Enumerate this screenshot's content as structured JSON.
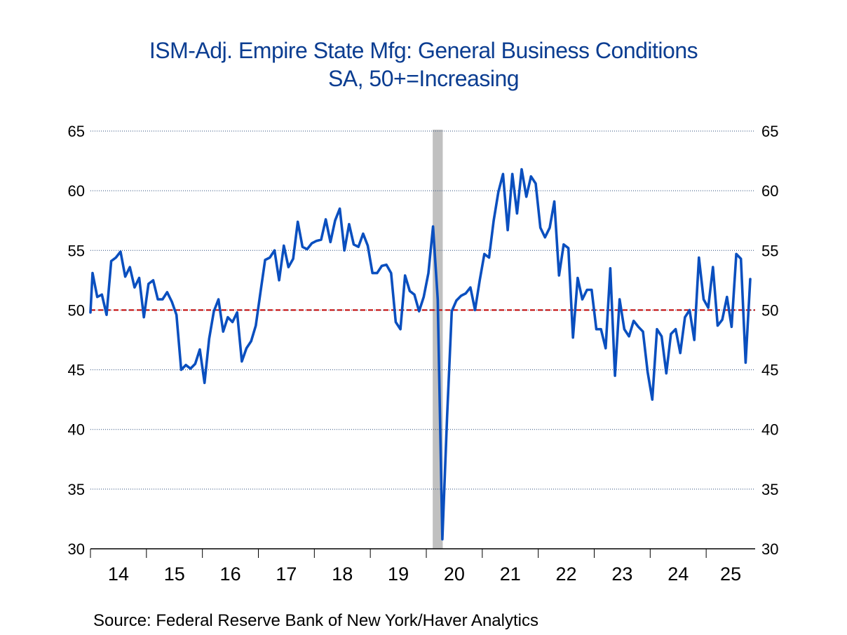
{
  "chart_data": {
    "type": "line",
    "title": "ISM-Adj. Empire State Mfg: General Business Conditions",
    "subtitle": "SA, 50+=Increasing",
    "source": "Source:  Federal Reserve Bank of New York/Haver Analytics",
    "xlabel": "",
    "ylabel": "",
    "ylim": [
      30,
      65
    ],
    "yticks": [
      30,
      35,
      40,
      45,
      50,
      55,
      60,
      65
    ],
    "ytick_labels": [
      "30",
      "35",
      "40",
      "45",
      "50",
      "55",
      "60",
      "65"
    ],
    "right_axis_mirrors_left": true,
    "xtick_labels": [
      "14",
      "15",
      "16",
      "17",
      "18",
      "19",
      "20",
      "21",
      "22",
      "23",
      "24",
      "25"
    ],
    "x_start": "2014-01",
    "x_frequency": "monthly",
    "grid": "horizontal dotted",
    "reference_line": {
      "value": 50,
      "style": "dashed",
      "color": "#c00000"
    },
    "recession_shading": [
      {
        "start": "2020-02",
        "end": "2020-04",
        "color": "#c0c0c0"
      }
    ],
    "series": [
      {
        "name": "General Business Conditions",
        "color": "#0a4fbf",
        "values": [
          53.1,
          51.1,
          51.3,
          49.6,
          54.1,
          54.4,
          54.9,
          52.8,
          53.6,
          51.9,
          52.7,
          49.4,
          52.2,
          52.5,
          50.9,
          50.9,
          51.5,
          50.7,
          49.6,
          45.0,
          45.4,
          45.1,
          45.5,
          46.7,
          43.9,
          47.6,
          49.9,
          50.9,
          48.2,
          49.4,
          49.0,
          49.8,
          45.7,
          46.8,
          47.4,
          48.7,
          51.5,
          54.2,
          54.4,
          55.0,
          52.5,
          55.4,
          53.6,
          54.3,
          57.4,
          55.3,
          55.1,
          55.6,
          55.8,
          55.9,
          57.6,
          55.7,
          57.5,
          58.5,
          55.0,
          57.2,
          55.5,
          55.3,
          56.4,
          55.4,
          53.1,
          53.1,
          53.7,
          53.8,
          53.1,
          49.0,
          48.4,
          52.9,
          51.6,
          51.3,
          49.9,
          51.1,
          53.1,
          57.0,
          50.9,
          30.8,
          41.0,
          49.9,
          50.8,
          51.2,
          51.4,
          51.9,
          50.0,
          52.5,
          54.7,
          54.4,
          57.5,
          59.9,
          61.4,
          56.7,
          61.4,
          58.1,
          61.8,
          59.5,
          61.2,
          60.6,
          56.9,
          56.1,
          56.9,
          59.1,
          52.9,
          55.5,
          55.2,
          47.7,
          52.7,
          50.9,
          51.7,
          51.7,
          48.4,
          48.4,
          46.8,
          53.5,
          44.5,
          50.9,
          48.4,
          47.8,
          49.1,
          48.6,
          48.2,
          44.8,
          42.5,
          48.4,
          47.8,
          44.7,
          48.0,
          48.4,
          46.4,
          49.4,
          50.0,
          47.5,
          54.4,
          50.9,
          50.2,
          53.6,
          48.7,
          49.2,
          51.1,
          48.6,
          54.7,
          54.3,
          45.6,
          52.6
        ],
        "prior_value_2013_12": 48.9
      }
    ]
  }
}
